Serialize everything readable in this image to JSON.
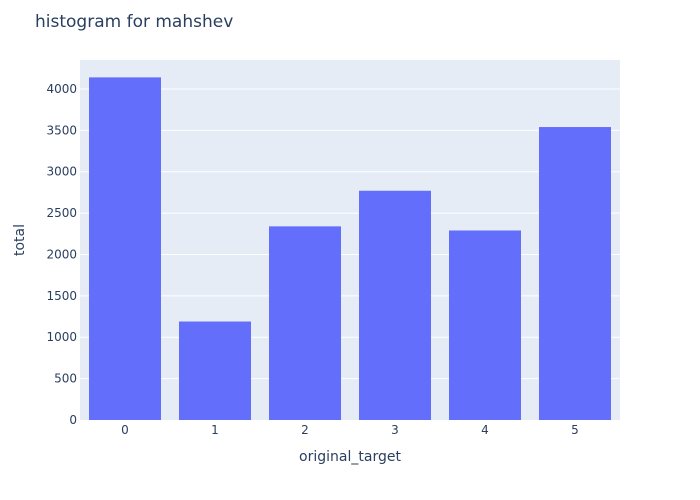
{
  "chart_data": {
    "type": "bar",
    "title": "histogram for mahshev",
    "xlabel": "original_target",
    "ylabel": "total",
    "categories": [
      "0",
      "1",
      "2",
      "3",
      "4",
      "5"
    ],
    "values": [
      4140,
      1190,
      2340,
      2770,
      2290,
      3540
    ],
    "ylim": [
      0,
      4350
    ],
    "yticks": [
      0,
      500,
      1000,
      1500,
      2000,
      2500,
      3000,
      3500,
      4000
    ],
    "grid": true,
    "legend": "none",
    "colors": {
      "bar": "#636efa",
      "plot_background": "#e5ecf6",
      "gridline": "#ffffff",
      "text": "#2a3f5f"
    }
  }
}
